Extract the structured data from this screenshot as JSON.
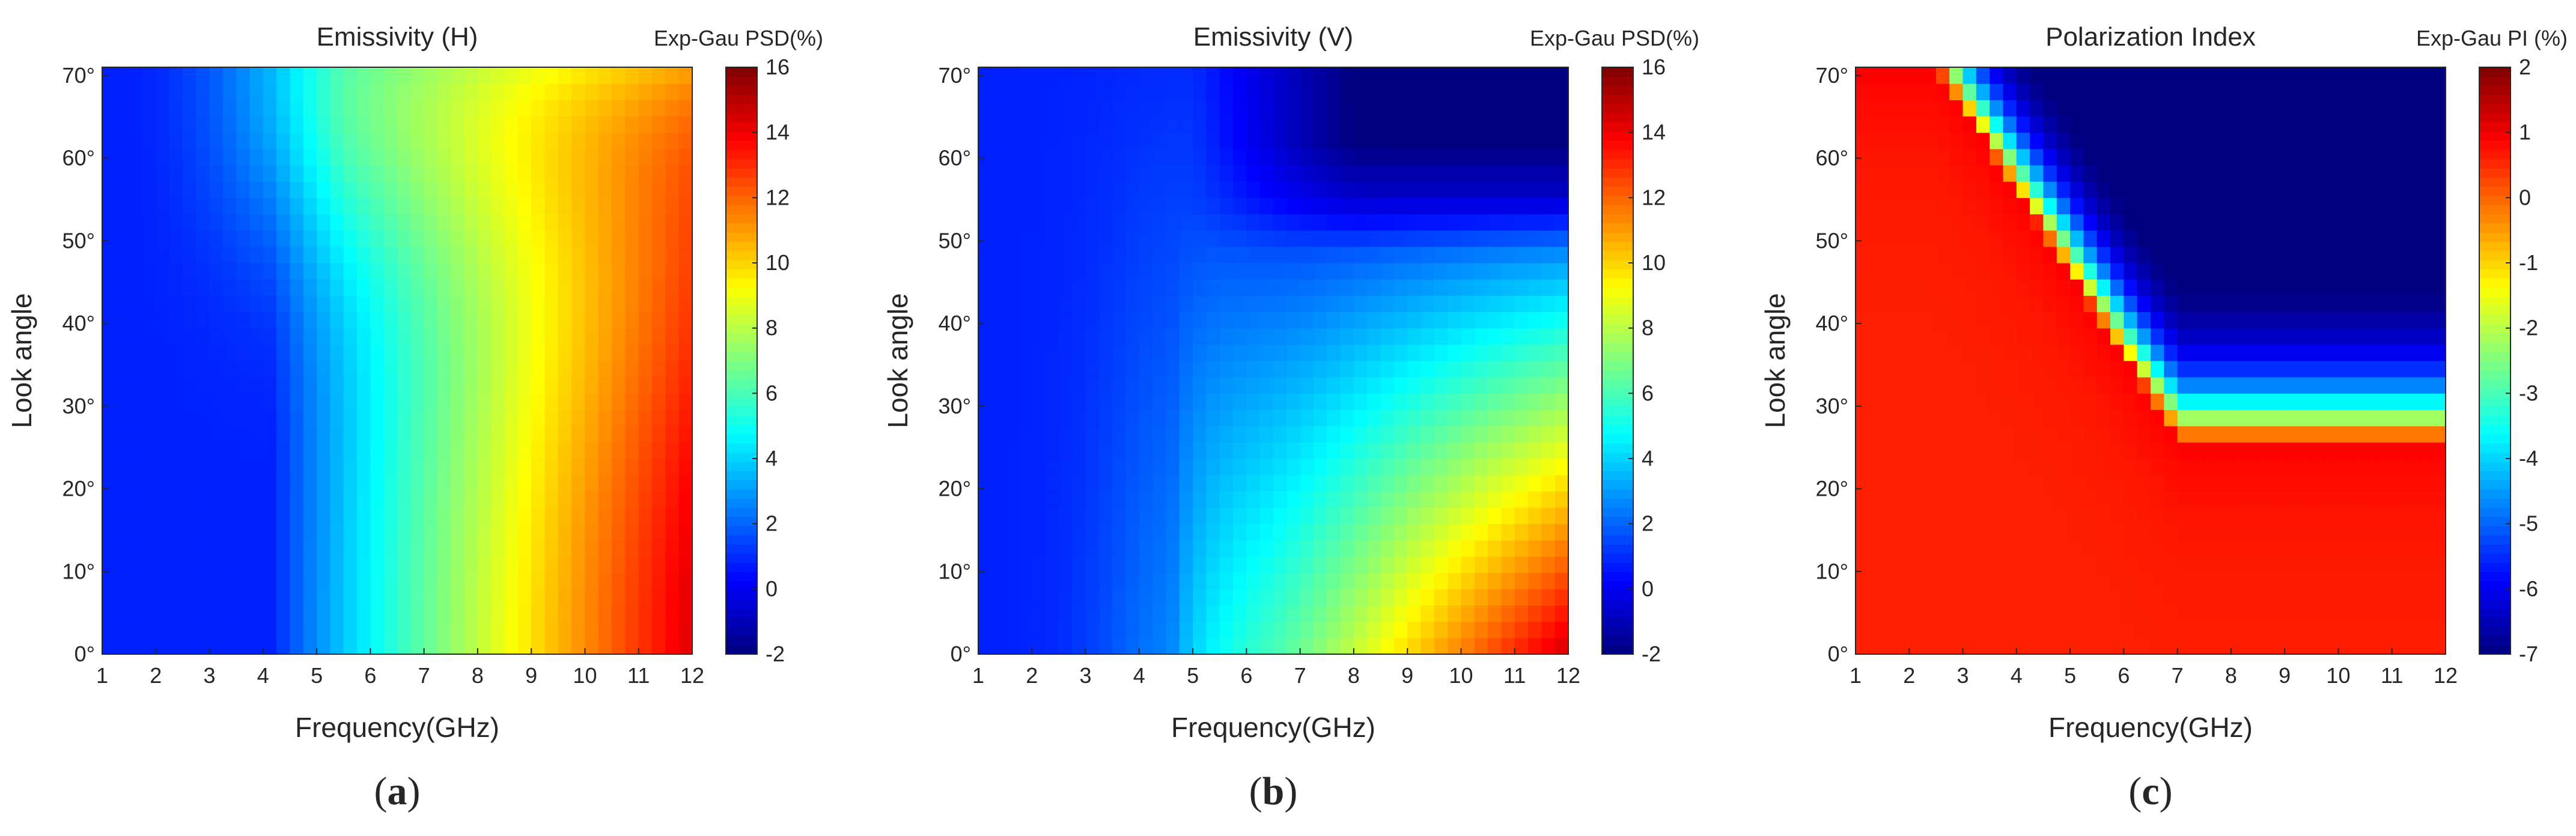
{
  "chart_data": [
    {
      "id": "a",
      "type": "heatmap",
      "title": "Emissivity (H)",
      "colorbar_title": "Exp-Gau PSD(%)",
      "xlabel": "Frequency(GHz)",
      "ylabel": "Look angle",
      "panel_label": "a",
      "x_range": [
        1,
        12
      ],
      "y_range": [
        0,
        71
      ],
      "x_ticks": [
        1,
        2,
        3,
        4,
        5,
        6,
        7,
        8,
        9,
        10,
        11,
        12
      ],
      "y_ticks": [
        0,
        10,
        20,
        30,
        40,
        50,
        60,
        70
      ],
      "y_tick_labels": [
        "0°",
        "10°",
        "20°",
        "30°",
        "40°",
        "50°",
        "60°",
        "70°"
      ],
      "colorbar_range": [
        -2,
        16
      ],
      "colorbar_ticks": [
        -2,
        0,
        2,
        4,
        6,
        8,
        10,
        12,
        14,
        16
      ],
      "model": "H"
    },
    {
      "id": "b",
      "type": "heatmap",
      "title": "Emissivity (V)",
      "colorbar_title": "Exp-Gau PSD(%)",
      "xlabel": "Frequency(GHz)",
      "ylabel": "Look angle",
      "panel_label": "b",
      "x_range": [
        1,
        12
      ],
      "y_range": [
        0,
        71
      ],
      "x_ticks": [
        1,
        2,
        3,
        4,
        5,
        6,
        7,
        8,
        9,
        10,
        11,
        12
      ],
      "y_ticks": [
        0,
        10,
        20,
        30,
        40,
        50,
        60,
        70
      ],
      "y_tick_labels": [
        "0°",
        "10°",
        "20°",
        "30°",
        "40°",
        "50°",
        "60°",
        "70°"
      ],
      "colorbar_range": [
        -2,
        16
      ],
      "colorbar_ticks": [
        -2,
        0,
        2,
        4,
        6,
        8,
        10,
        12,
        14,
        16
      ],
      "model": "V"
    },
    {
      "id": "c",
      "type": "heatmap",
      "title": "Polarization Index",
      "colorbar_title": "Exp-Gau PI (%)",
      "xlabel": "Frequency(GHz)",
      "ylabel": "Look angle",
      "panel_label": "c",
      "x_range": [
        1,
        12
      ],
      "y_range": [
        0,
        71
      ],
      "x_ticks": [
        1,
        2,
        3,
        4,
        5,
        6,
        7,
        8,
        9,
        10,
        11,
        12
      ],
      "y_ticks": [
        0,
        10,
        20,
        30,
        40,
        50,
        60,
        70
      ],
      "y_tick_labels": [
        "0°",
        "10°",
        "20°",
        "30°",
        "40°",
        "50°",
        "60°",
        "70°"
      ],
      "colorbar_range": [
        -7,
        2
      ],
      "colorbar_ticks": [
        -7,
        -6,
        -5,
        -4,
        -3,
        -2,
        -1,
        0,
        1,
        2
      ],
      "model": "PI"
    }
  ]
}
